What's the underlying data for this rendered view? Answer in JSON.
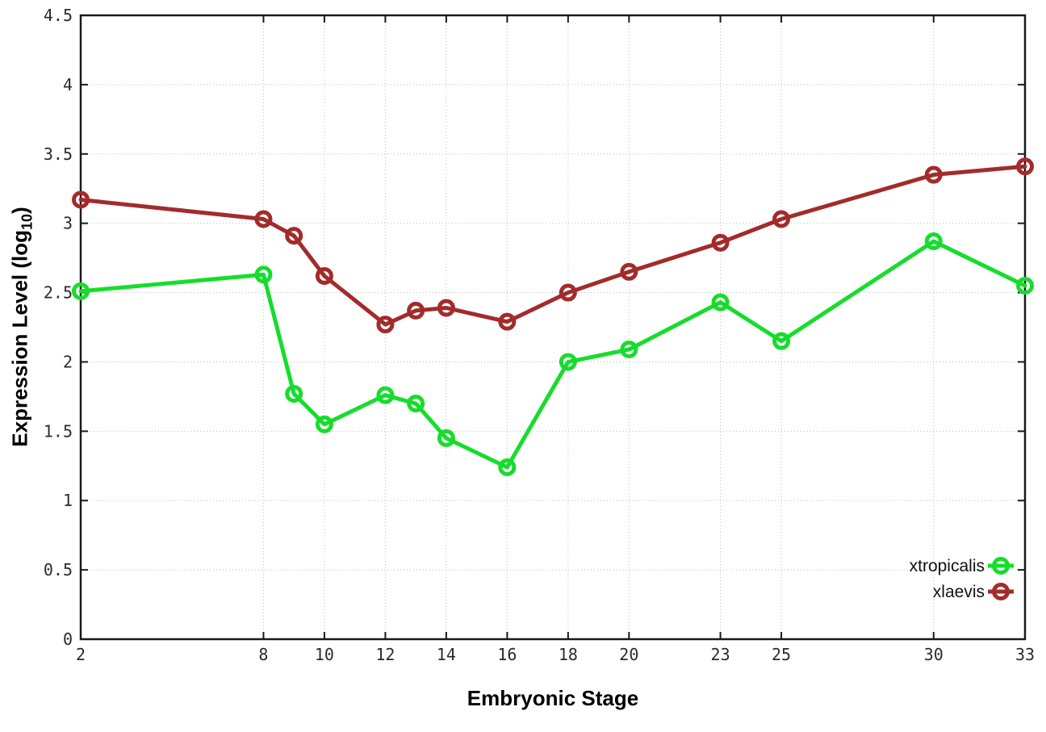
{
  "chart_data": {
    "type": "line",
    "xlabel": "Embryonic Stage",
    "ylabel_prefix": "Expression Level (log",
    "ylabel_subscript": "10",
    "ylabel_suffix": ")",
    "xlim": [
      2,
      33
    ],
    "ylim": [
      0,
      4.5
    ],
    "grid": true,
    "legend_position": "bottom-right",
    "x": [
      2,
      8,
      9,
      10,
      12,
      13,
      14,
      16,
      18,
      20,
      23,
      25,
      30,
      33
    ],
    "x_tick_values": [
      2,
      8,
      10,
      12,
      14,
      16,
      18,
      20,
      23,
      25,
      30,
      33
    ],
    "x_tick_labels": [
      "2",
      "8",
      "10",
      "12",
      "14",
      "16",
      "18",
      "20",
      "23",
      "25",
      "30",
      "33"
    ],
    "y_tick_values": [
      0,
      0.5,
      1,
      1.5,
      2,
      2.5,
      3,
      3.5,
      4,
      4.5
    ],
    "y_tick_labels": [
      "0",
      "0.5",
      "1",
      "1.5",
      "2",
      "2.5",
      "3",
      "3.5",
      "4",
      "4.5"
    ],
    "series": [
      {
        "name": "xtropicalis",
        "color": "#16dd2c",
        "values": [
          2.51,
          2.63,
          1.77,
          1.55,
          1.76,
          1.7,
          1.45,
          1.24,
          2.0,
          2.09,
          2.43,
          2.15,
          2.87,
          2.55
        ]
      },
      {
        "name": "xlaevis",
        "color": "#a32b2b",
        "values": [
          3.17,
          3.03,
          2.91,
          2.62,
          2.27,
          2.37,
          2.39,
          2.29,
          2.5,
          2.65,
          2.86,
          3.03,
          3.35,
          3.41
        ]
      }
    ],
    "colors": {
      "axis": "#1a1a1a",
      "grid": "#bdbdbd",
      "background": "#ffffff"
    }
  }
}
